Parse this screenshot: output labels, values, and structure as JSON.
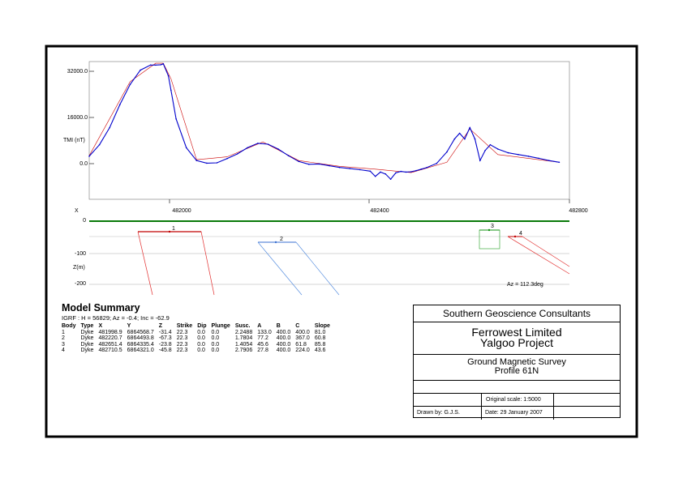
{
  "chart_data": [
    {
      "type": "line",
      "ylabel": "TMI (nT)",
      "yticks": [
        "32000.0",
        "16000.0",
        "0.0"
      ],
      "ytick_values": [
        32000,
        16000,
        0
      ],
      "ylim": [
        -12000,
        36000
      ],
      "xlabel": "X",
      "xticks": [
        "482000",
        "482400",
        "482800"
      ],
      "xtick_values": [
        482000,
        482400,
        482800
      ],
      "xlim": [
        481860,
        482800
      ],
      "grid": false,
      "series": [
        {
          "color": "#0000cc",
          "x": [
            481860,
            481880,
            481900,
            481920,
            481940,
            481960,
            481980,
            481990,
            482000,
            482005,
            482015,
            482020,
            482030,
            482050,
            482070,
            482090,
            482110,
            482130,
            482150,
            482170,
            482190,
            482210,
            482230,
            482250,
            482270,
            482290,
            482310,
            482330,
            482350,
            482370,
            482390,
            482410,
            482420,
            482430,
            482440,
            482450,
            482460,
            482470,
            482480,
            482490,
            482500,
            482510,
            482520,
            482540,
            482560,
            482575,
            482585,
            482595,
            482605,
            482615,
            482625,
            482635,
            482645,
            482660,
            482680,
            482700,
            482720,
            482740,
            482760,
            482780
          ],
          "y": [
            3000,
            7000,
            13000,
            21000,
            28000,
            33000,
            34800,
            34800,
            34900,
            35200,
            31000,
            26000,
            16000,
            6000,
            1500,
            600,
            700,
            2200,
            3800,
            6000,
            7500,
            7200,
            5500,
            3200,
            1200,
            200,
            300,
            -300,
            -900,
            -1300,
            -1700,
            -2200,
            -4000,
            -2500,
            -3200,
            -5000,
            -2800,
            -2300,
            -2500,
            -2400,
            -2000,
            -1500,
            -1000,
            500,
            4500,
            9000,
            11000,
            9000,
            13000,
            9000,
            1500,
            5000,
            7000,
            5500,
            4200,
            3600,
            3000,
            2300,
            1500,
            900
          ]
        },
        {
          "color": "#cc0000",
          "x": [
            481860,
            481940,
            481990,
            482005,
            482020,
            482070,
            482130,
            482200,
            482270,
            482350,
            482420,
            482490,
            482560,
            482605,
            482660,
            482780
          ],
          "y": [
            3200,
            29000,
            35400,
            35400,
            30000,
            1800,
            2800,
            8000,
            1500,
            -500,
            -1500,
            -2700,
            900,
            12500,
            3600,
            900
          ]
        }
      ]
    },
    {
      "type": "section",
      "ylabel": "Z(m)",
      "yticks": [
        "0",
        "-100",
        "-200"
      ],
      "ytick_values": [
        0,
        -100,
        -200
      ],
      "annotation": "Az = 112.3deg",
      "body_labels": [
        "1",
        "2",
        "3",
        "4"
      ]
    }
  ],
  "summary": {
    "title": "Model Summary",
    "igrf": "IGRF :   H = 56829;  Az = -0.4;  Inc = -62.9",
    "columns": [
      "Body",
      "Type",
      "X",
      "Y",
      "Z",
      "Strike",
      "Dip",
      "Plunge",
      "Susc.",
      "A",
      "B",
      "C",
      "Slope"
    ],
    "rows": [
      [
        "1",
        "Dyke",
        "481998.9",
        "6864568.7",
        "-31.4",
        "22.3",
        "0.0",
        "0.0",
        "2.2488",
        "133.0",
        "400.0",
        "400.0",
        "81.0"
      ],
      [
        "2",
        "Dyke",
        "482220.7",
        "6864493.8",
        "-67.3",
        "22.3",
        "0.0",
        "0.0",
        "1.7804",
        "77.2",
        "400.0",
        "367.0",
        "60.8"
      ],
      [
        "3",
        "Dyke",
        "482651.4",
        "6864335.4",
        "-23.8",
        "22.3",
        "0.0",
        "0.0",
        "1.4054",
        "45.6",
        "400.0",
        "61.8",
        "85.8"
      ],
      [
        "4",
        "Dyke",
        "482710.5",
        "6864321.0",
        "-45.8",
        "22.3",
        "0.0",
        "0.0",
        "2.7906",
        "27.8",
        "400.0",
        "224.0",
        "43.6"
      ]
    ]
  },
  "titleblock": {
    "company": "Southern Geoscience Consultants",
    "client": "Ferrowest Limited",
    "project": "Yalgoo Project",
    "survey": "Ground Magnetic Survey",
    "profile": "Profile 61N",
    "scale": "Original scale: 1:5000",
    "drawn_by": "Drawn by: G.J.S.",
    "date": "Date: 29 January 2007"
  }
}
